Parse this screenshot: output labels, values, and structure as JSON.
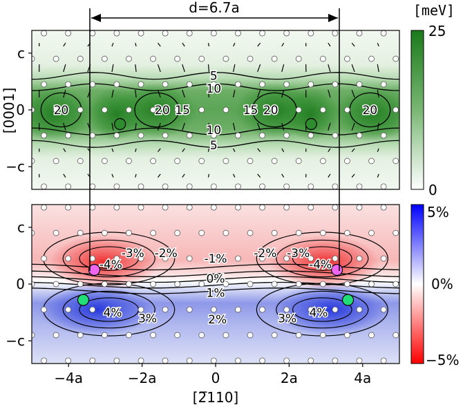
{
  "chart_data": [
    {
      "type": "heatmap",
      "title": "",
      "quantity": "energy",
      "colorbar": {
        "unit_label": "[meV]",
        "min": 0,
        "max": 25,
        "tick_labels": [
          "25",
          "0"
        ],
        "color_high": "#1b7a1b",
        "color_low": "#ffffff"
      },
      "ylabel": "[0001]",
      "y_tick_labels": [
        "c",
        "0",
        "−c"
      ],
      "y_ticks": [
        1,
        0,
        -1
      ],
      "xlim": [
        -5,
        5
      ],
      "ylim": [
        -1.4,
        1.4
      ],
      "contour_levels": [
        5,
        10,
        15,
        20
      ],
      "contour_labels": [
        {
          "text": "5",
          "x": -0.05,
          "y": 0.6
        },
        {
          "text": "10",
          "x": -0.05,
          "y": 0.38
        },
        {
          "text": "20",
          "x": -4.2,
          "y": 0.0
        },
        {
          "text": "20",
          "x": -1.45,
          "y": 0.0
        },
        {
          "text": "15",
          "x": -0.9,
          "y": 0.0
        },
        {
          "text": "15",
          "x": 0.95,
          "y": 0.0
        },
        {
          "text": "20",
          "x": 1.5,
          "y": 0.0
        },
        {
          "text": "20",
          "x": 4.2,
          "y": 0.0
        },
        {
          "text": "10",
          "x": -0.05,
          "y": -0.35
        },
        {
          "text": "5",
          "x": -0.05,
          "y": -0.62
        }
      ],
      "dislocation_core_markers": [
        {
          "x": -2.6,
          "y": -0.25,
          "color": "#2e8b2e"
        },
        {
          "x": 2.6,
          "y": -0.25,
          "color": "#2e8b2e"
        }
      ]
    },
    {
      "type": "heatmap",
      "title": "",
      "quantity": "strain",
      "colorbar": {
        "min": -5,
        "max": 5,
        "tick_labels": [
          "5%",
          "0%",
          "−5%"
        ],
        "color_high": "#0000ff",
        "color_mid": "#ffffff",
        "color_low": "#ff0000"
      },
      "xlabel": "[2̅110]",
      "x_tick_labels": [
        "−4a",
        "−2a",
        "0",
        "2a",
        "4a"
      ],
      "x_ticks": [
        -4,
        -2,
        0,
        2,
        4
      ],
      "ylabel": "",
      "y_tick_labels": [
        "c",
        "0",
        "−c"
      ],
      "y_ticks": [
        1,
        0,
        -1
      ],
      "xlim": [
        -5,
        5
      ],
      "ylim": [
        -1.4,
        1.4
      ],
      "contour_labels": [
        {
          "text": "-3%",
          "x": -2.25,
          "y": 0.55
        },
        {
          "text": "-2%",
          "x": -1.35,
          "y": 0.55
        },
        {
          "text": "-4%",
          "x": -2.85,
          "y": 0.35
        },
        {
          "text": "-1%",
          "x": 0.0,
          "y": 0.45
        },
        {
          "text": "0%",
          "x": 0.0,
          "y": 0.1
        },
        {
          "text": "-2%",
          "x": 1.35,
          "y": 0.55
        },
        {
          "text": "-3%",
          "x": 2.25,
          "y": 0.55
        },
        {
          "text": "-4%",
          "x": 2.85,
          "y": 0.35
        },
        {
          "text": "1%",
          "x": 0.0,
          "y": -0.15
        },
        {
          "text": "4%",
          "x": -2.8,
          "y": -0.5
        },
        {
          "text": "3%",
          "x": -1.85,
          "y": -0.6
        },
        {
          "text": "2%",
          "x": 0.05,
          "y": -0.62
        },
        {
          "text": "3%",
          "x": 1.95,
          "y": -0.6
        },
        {
          "text": "4%",
          "x": 2.8,
          "y": -0.5
        }
      ],
      "markers": [
        {
          "x": -3.3,
          "y": 0.25,
          "color": "#ee66ee"
        },
        {
          "x": 3.3,
          "y": 0.25,
          "color": "#ee66ee"
        },
        {
          "x": -3.6,
          "y": -0.28,
          "color": "#22dd77"
        },
        {
          "x": 3.6,
          "y": -0.28,
          "color": "#22dd77"
        }
      ]
    }
  ],
  "annotation": {
    "text": "d=6.7a",
    "x1": -3.35,
    "x2": 3.35
  },
  "colors": {
    "axis": "#000000",
    "atom_fill": "#ffffff",
    "atom_stroke": "#555555"
  }
}
